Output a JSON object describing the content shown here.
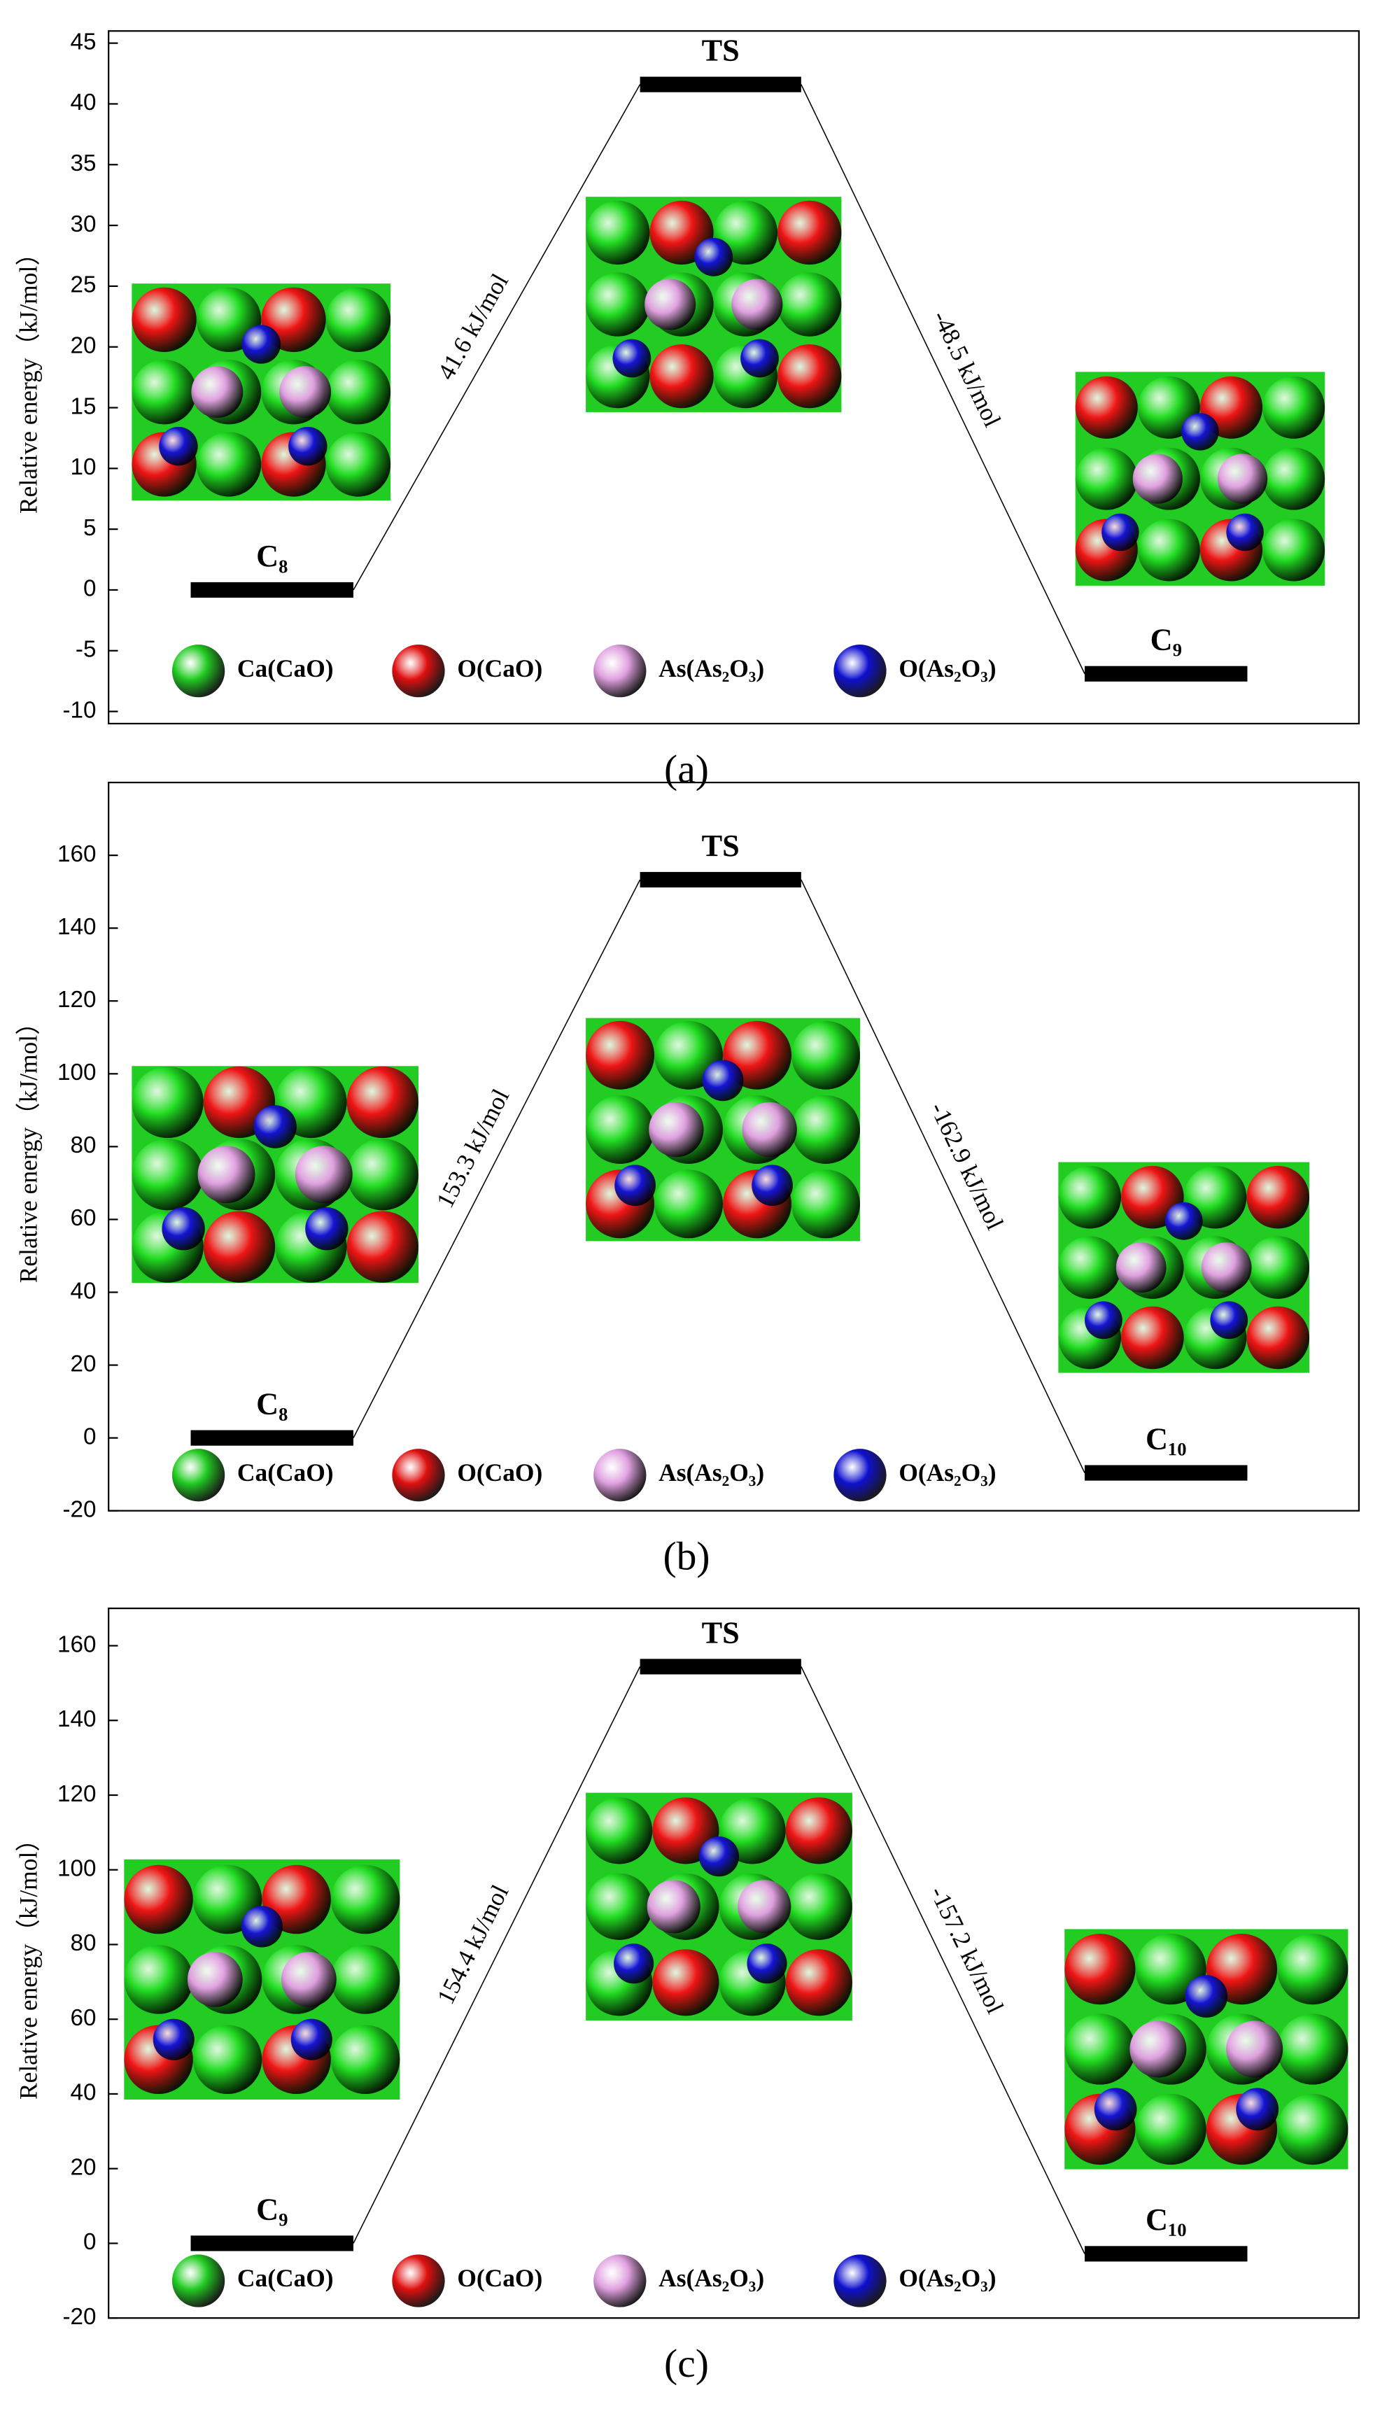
{
  "chart_data": [
    {
      "type": "energy",
      "ylabel": "Relative energy（kJ/mol）",
      "caption": "(a)",
      "categories": [
        "C₈",
        "TS",
        "C₉"
      ],
      "values": [
        0,
        41.6,
        -6.9
      ],
      "annotations": [
        "41.6 kJ/mol",
        "-48.5 kJ/mol"
      ],
      "ylim": [
        -11,
        46
      ],
      "yticks": [
        -10,
        -5,
        0,
        5,
        10,
        15,
        20,
        25,
        30,
        35,
        40,
        45
      ],
      "legend": [
        {
          "name": "Ca(CaO)",
          "color": "#22cc22"
        },
        {
          "name": "O(CaO)",
          "color": "#e01010"
        },
        {
          "name": "As(As₂O₃)",
          "color": "#e0a0e0"
        },
        {
          "name": "O(As₂O₃)",
          "color": "#1010d0"
        }
      ]
    },
    {
      "type": "energy",
      "ylabel": "Relative energy（kJ/mol）",
      "caption": "(b)",
      "categories": [
        "C₈",
        "TS",
        "C₁₀"
      ],
      "values": [
        0,
        153.3,
        -9.6
      ],
      "annotations": [
        "153.3 kJ/mol",
        "-162.9 kJ/mol"
      ],
      "ylim": [
        -20,
        180
      ],
      "yticks": [
        -20,
        0,
        20,
        40,
        60,
        80,
        100,
        120,
        140,
        160
      ],
      "legend": [
        {
          "name": "Ca(CaO)",
          "color": "#22cc22"
        },
        {
          "name": "O(CaO)",
          "color": "#e01010"
        },
        {
          "name": "As(As₂O₃)",
          "color": "#e0a0e0"
        },
        {
          "name": "O(As₂O₃)",
          "color": "#1010d0"
        }
      ]
    },
    {
      "type": "energy",
      "ylabel": "Relative energy（kJ/mol）",
      "caption": "(c)",
      "categories": [
        "C₉",
        "TS",
        "C₁₀"
      ],
      "values": [
        0,
        154.4,
        -2.8
      ],
      "annotations": [
        "154.4 kJ/mol",
        "-157.2 kJ/mol"
      ],
      "ylim": [
        -20,
        170
      ],
      "yticks": [
        -20,
        0,
        20,
        40,
        60,
        80,
        100,
        120,
        140,
        160
      ],
      "legend": [
        {
          "name": "Ca(CaO)",
          "color": "#22cc22"
        },
        {
          "name": "O(CaO)",
          "color": "#e01010"
        },
        {
          "name": "As(As₂O₃)",
          "color": "#e0a0e0"
        },
        {
          "name": "O(As₂O₃)",
          "color": "#1010d0"
        }
      ]
    }
  ]
}
